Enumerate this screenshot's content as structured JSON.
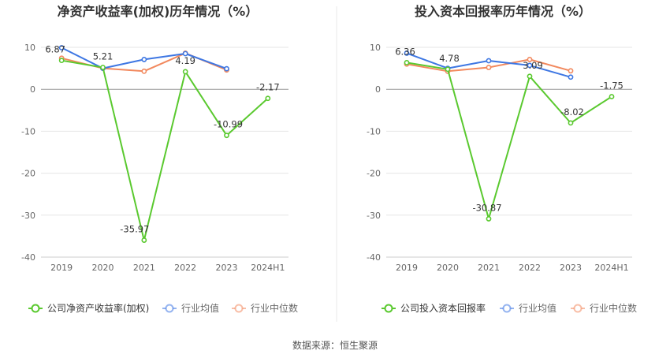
{
  "source_label": "数据来源：恒生聚源",
  "chart_data": [
    {
      "type": "line",
      "title": "净资产收益率(加权)历年情况（%）",
      "categories": [
        "2019",
        "2020",
        "2021",
        "2022",
        "2023",
        "2024H1"
      ],
      "ylim": [
        -40,
        10
      ],
      "yticks": [
        10,
        0,
        -10,
        -20,
        -30,
        -40
      ],
      "grid": true,
      "legend_position": "bottom",
      "series": [
        {
          "name": "公司净资产收益率(加权)",
          "color": "#5ac92f",
          "values": [
            6.87,
            5.21,
            -35.97,
            4.19,
            -10.99,
            -2.17
          ],
          "labeled": true
        },
        {
          "name": "行业均值",
          "color": "#3e77e3",
          "values": [
            9.9,
            5.0,
            7.1,
            8.5,
            4.9,
            null
          ],
          "labeled": false
        },
        {
          "name": "行业中位数",
          "color": "#f2895e",
          "values": [
            7.4,
            5.0,
            4.3,
            8.6,
            4.6,
            null
          ],
          "labeled": false
        }
      ],
      "data_labels": [
        "6.87",
        "5.21",
        "-35.97",
        "4.19",
        "-10.99",
        "-2.17"
      ]
    },
    {
      "type": "line",
      "title": "投入资本回报率历年情况（%）",
      "categories": [
        "2019",
        "2020",
        "2021",
        "2022",
        "2023",
        "2024H1"
      ],
      "ylim": [
        -40,
        10
      ],
      "yticks": [
        10,
        0,
        -10,
        -20,
        -30,
        -40
      ],
      "grid": true,
      "legend_position": "bottom",
      "series": [
        {
          "name": "公司投入资本回报率",
          "color": "#5ac92f",
          "values": [
            6.36,
            4.78,
            -30.87,
            3.09,
            -8.02,
            -1.75
          ],
          "labeled": true
        },
        {
          "name": "行业均值",
          "color": "#3e77e3",
          "values": [
            8.6,
            5.0,
            6.8,
            5.7,
            2.9,
            null
          ],
          "labeled": false
        },
        {
          "name": "行业中位数",
          "color": "#f2895e",
          "values": [
            6.0,
            4.3,
            5.2,
            7.1,
            4.4,
            null
          ],
          "labeled": false
        }
      ],
      "data_labels": [
        "6.36",
        "4.78",
        "-30.87",
        "3.09",
        "-8.02",
        "-1.75"
      ]
    }
  ]
}
